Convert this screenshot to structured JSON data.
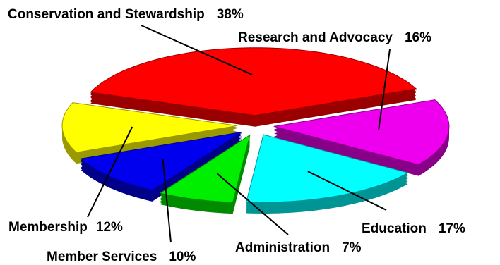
{
  "chart_data": {
    "type": "pie",
    "style": "3d-exploded",
    "labels": [
      "Conservation and Stewardship",
      "Research and Advocacy",
      "Education",
      "Administration",
      "Member Services",
      "Membership"
    ],
    "values": [
      38,
      16,
      17,
      7,
      10,
      12
    ],
    "value_labels": [
      "38%",
      "16%",
      "17%",
      "7%",
      "10%",
      "12%"
    ],
    "colors": [
      "#ff0000",
      "#ee00ee",
      "#00ffff",
      "#00ee00",
      "#0000ee",
      "#ffff00"
    ],
    "side_colors": [
      "#9a0000",
      "#880088",
      "#009494",
      "#008a00",
      "#000088",
      "#9a9a00"
    ],
    "legend": "none"
  }
}
